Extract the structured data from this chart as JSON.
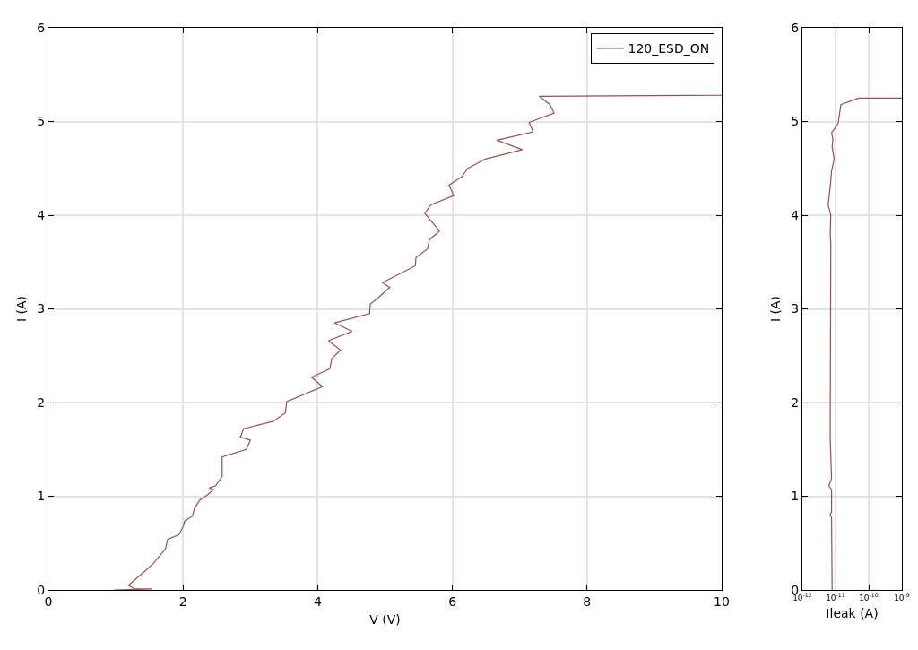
{
  "chart_data": [
    {
      "type": "line",
      "xlabel": "V (V)",
      "ylabel": "I (A)",
      "xlim": [
        0,
        10
      ],
      "ylim": [
        0,
        6
      ],
      "xticks": [
        0,
        2,
        4,
        6,
        8,
        10
      ],
      "yticks": [
        0,
        1,
        2,
        3,
        4,
        5,
        6
      ],
      "grid": true,
      "legend": "top right",
      "line_style": "solid",
      "series": [
        {
          "name": "120_ESD_ON",
          "color": "#9b4f4f",
          "x": [
            0.97,
            1.54,
            1.28,
            1.19,
            1.45,
            1.57,
            1.74,
            1.77,
            1.94,
            2.01,
            2.02,
            2.14,
            2.17,
            2.25,
            2.37,
            2.45,
            2.39,
            2.48,
            2.58,
            2.58,
            2.94,
            3.0,
            2.85,
            2.9,
            3.34,
            3.52,
            3.54,
            4.07,
            3.91,
            4.18,
            4.21,
            4.34,
            4.16,
            4.51,
            4.25,
            4.77,
            4.78,
            4.9,
            5.07,
            4.96,
            5.45,
            5.46,
            5.63,
            5.66,
            5.81,
            5.59,
            5.68,
            6.02,
            5.95,
            6.14,
            6.23,
            6.49,
            7.04,
            6.66,
            7.2,
            7.14,
            7.51,
            7.45,
            7.29,
            10
          ],
          "values": [
            0,
            0.01,
            0.01,
            0.05,
            0.21,
            0.29,
            0.44,
            0.54,
            0.59,
            0.69,
            0.73,
            0.79,
            0.87,
            0.96,
            1.02,
            1.07,
            1.09,
            1.11,
            1.21,
            1.42,
            1.5,
            1.6,
            1.63,
            1.72,
            1.8,
            1.89,
            2.01,
            2.17,
            2.27,
            2.36,
            2.47,
            2.56,
            2.66,
            2.76,
            2.85,
            2.95,
            3.05,
            3.12,
            3.23,
            3.28,
            3.46,
            3.55,
            3.64,
            3.74,
            3.83,
            4.02,
            4.11,
            4.21,
            4.32,
            4.41,
            4.5,
            4.6,
            4.7,
            4.8,
            4.89,
            4.99,
            5.09,
            5.18,
            5.27,
            5.28
          ]
        }
      ]
    },
    {
      "type": "line",
      "xlabel": "Ileak (A)",
      "ylabel": "I (A)",
      "log": "x",
      "xlim": [
        1e-12,
        1e-09
      ],
      "ylim": [
        0,
        6
      ],
      "xticks": [
        {
          "value": 1e-12,
          "label": "10$^{-12}$"
        },
        {
          "value": 1e-11,
          "label": "10$^{-11}$"
        },
        {
          "value": 1e-10,
          "label": "10$^{-10}$"
        },
        {
          "value": 1e-09,
          "label": "10$^{-9}$"
        }
      ],
      "yticks": [
        0,
        1,
        2,
        3,
        4,
        5,
        6
      ],
      "grid": true,
      "line_style": "solid",
      "series": [
        {
          "color": "#9b4f4f",
          "x": [
            7.9e-12,
            7.6e-12,
            6.9e-12,
            7.6e-12,
            7.6e-12,
            6.3e-12,
            7.6e-12,
            6.9e-12,
            7.2e-12,
            6.9e-12,
            7.2e-12,
            6e-12,
            6.9e-12,
            7.6e-12,
            9.1e-12,
            7.9e-12,
            8.3e-12,
            7.6e-12,
            1.2e-11,
            1.45e-11,
            5e-11,
            1e-09
          ],
          "values": [
            0,
            0.77,
            0.81,
            0.83,
            1.07,
            1.11,
            1.19,
            1.62,
            3.71,
            3.79,
            4.0,
            4.11,
            4.3,
            4.47,
            4.6,
            4.73,
            4.81,
            4.88,
            4.98,
            5.18,
            5.25,
            5.25
          ]
        }
      ]
    }
  ]
}
